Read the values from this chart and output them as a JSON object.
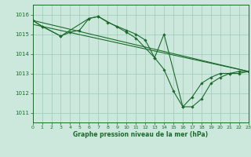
{
  "background_color": "#cce8dc",
  "grid_color": "#99ccbb",
  "line_color": "#1a6b2a",
  "marker_color": "#1a6b2a",
  "xlabel": "Graphe pression niveau de la mer (hPa)",
  "xlim": [
    0,
    23
  ],
  "ylim": [
    1010.5,
    1016.5
  ],
  "yticks": [
    1011,
    1012,
    1013,
    1014,
    1015,
    1016
  ],
  "xticks": [
    0,
    1,
    2,
    3,
    4,
    5,
    6,
    7,
    8,
    9,
    10,
    11,
    12,
    13,
    14,
    15,
    16,
    17,
    18,
    19,
    20,
    21,
    22,
    23
  ],
  "series": [
    {
      "x": [
        0,
        1,
        3,
        4,
        5,
        6,
        7,
        8,
        9,
        10,
        11,
        12,
        13,
        14,
        15,
        16,
        17,
        18,
        19,
        20,
        21,
        22,
        23
      ],
      "y": [
        1015.7,
        1015.4,
        1014.9,
        1015.1,
        1015.2,
        1015.8,
        1015.9,
        1015.6,
        1015.4,
        1015.2,
        1015.0,
        1014.7,
        1013.8,
        1013.2,
        1012.1,
        1011.3,
        1011.3,
        1011.7,
        1012.5,
        1012.8,
        1013.0,
        1013.1,
        1013.1
      ],
      "marker": true
    },
    {
      "x": [
        0,
        1,
        3,
        6,
        7,
        10,
        11,
        13,
        14,
        16,
        17,
        18,
        19,
        20,
        21,
        22,
        23
      ],
      "y": [
        1015.7,
        1015.4,
        1014.9,
        1015.8,
        1015.9,
        1015.1,
        1014.8,
        1013.8,
        1015.0,
        1011.3,
        1011.8,
        1012.5,
        1012.8,
        1013.0,
        1013.0,
        1013.0,
        1013.1
      ],
      "marker": true
    },
    {
      "x": [
        0,
        23
      ],
      "y": [
        1015.7,
        1013.1
      ],
      "marker": false
    },
    {
      "x": [
        0,
        23
      ],
      "y": [
        1015.5,
        1013.1
      ],
      "marker": false
    }
  ]
}
